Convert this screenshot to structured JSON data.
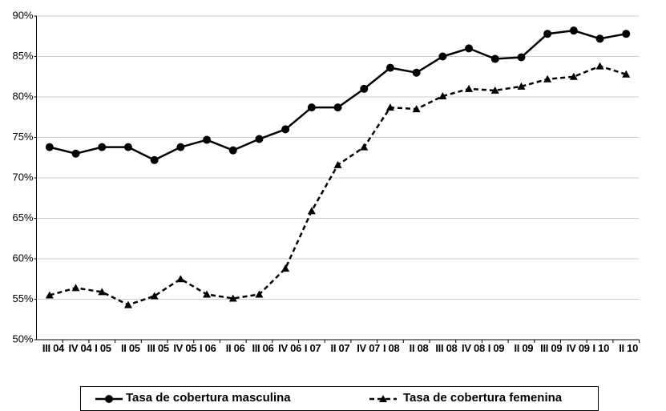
{
  "chart_data": {
    "type": "line",
    "categories": [
      "III 04",
      "IV 04",
      "I 05",
      "II 05",
      "III 05",
      "IV 05",
      "I 06",
      "II 06",
      "III 06",
      "IV 06",
      "I 07",
      "II 07",
      "IV 07",
      "I 08",
      "II 08",
      "III 08",
      "IV 08",
      "I 09",
      "II 09",
      "III 09",
      "IV 09",
      "I 10",
      "II 10"
    ],
    "series": [
      {
        "name": "Tasa de cobertura masculina",
        "color": "#000000",
        "dash": false,
        "marker": "circle",
        "values": [
          73.8,
          73.0,
          73.8,
          73.8,
          72.2,
          73.8,
          74.7,
          73.4,
          74.8,
          76.0,
          78.7,
          78.7,
          81.0,
          83.6,
          83.0,
          85.0,
          86.0,
          84.7,
          84.9,
          87.8,
          88.2,
          87.2,
          87.8
        ]
      },
      {
        "name": "Tasa de cobertura femenina",
        "color": "#000000",
        "dash": true,
        "marker": "triangle",
        "values": [
          55.5,
          56.4,
          55.9,
          54.3,
          55.4,
          57.5,
          55.6,
          55.1,
          55.6,
          58.8,
          65.9,
          71.6,
          73.8,
          78.7,
          78.5,
          80.1,
          81.0,
          80.8,
          81.3,
          82.2,
          82.5,
          83.8,
          82.8
        ]
      }
    ],
    "ylim": [
      50,
      90
    ],
    "yticks": [
      {
        "value": 50,
        "label": "50%"
      },
      {
        "value": 55,
        "label": "55%"
      },
      {
        "value": 60,
        "label": "60%"
      },
      {
        "value": 65,
        "label": "65%"
      },
      {
        "value": 70,
        "label": "70%"
      },
      {
        "value": 75,
        "label": "75%"
      },
      {
        "value": 80,
        "label": "80%"
      },
      {
        "value": 85,
        "label": "85%"
      },
      {
        "value": 90,
        "label": "90%"
      }
    ],
    "grid": true,
    "legend": "bottom"
  }
}
